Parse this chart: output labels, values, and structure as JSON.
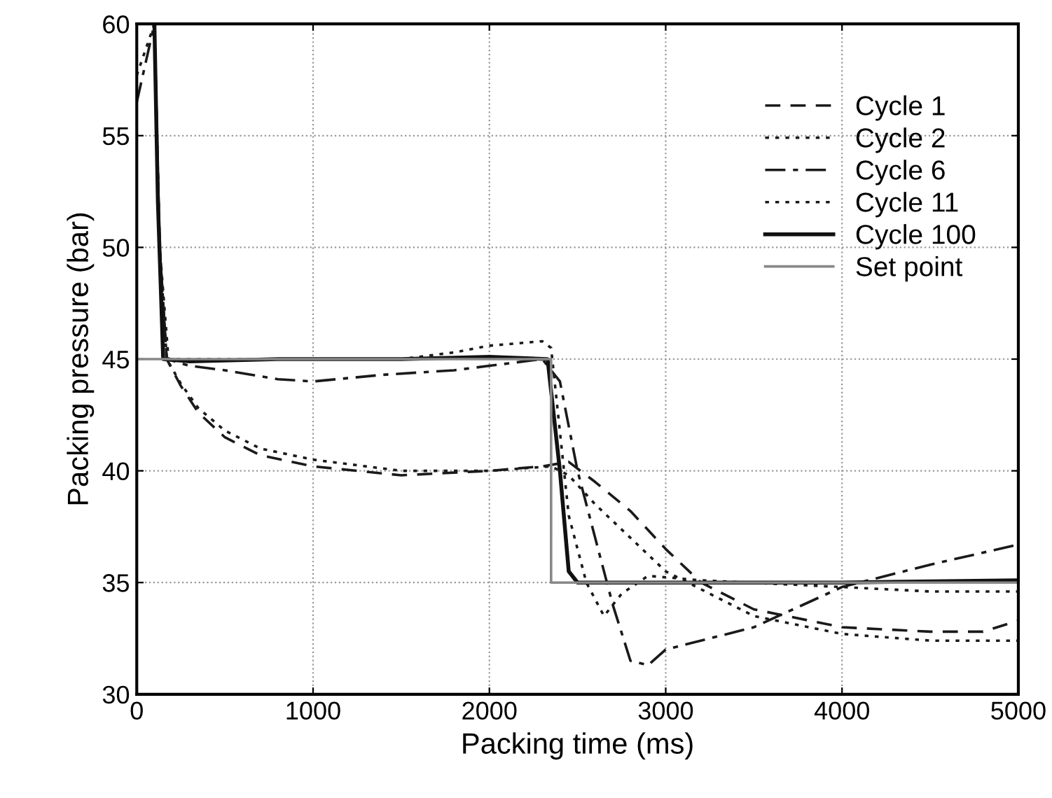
{
  "chart_data": {
    "type": "line",
    "xlabel": "Packing time (ms)",
    "ylabel": "Packing pressure (bar)",
    "xlim": [
      0,
      5000
    ],
    "ylim": [
      30,
      60
    ],
    "xticks": [
      0,
      1000,
      2000,
      3000,
      4000,
      5000
    ],
    "yticks": [
      30,
      35,
      40,
      45,
      50,
      55,
      60
    ],
    "grid": true,
    "legend": "top right",
    "marker": "none",
    "series": [
      {
        "name": "Cycle 1",
        "color": "#1a1a1a",
        "line_style": "dashed",
        "x": [
          100,
          130,
          170,
          250,
          350,
          500,
          700,
          1000,
          1500,
          2000,
          2300,
          2450,
          2600,
          2800,
          3000,
          3200,
          3500,
          4000,
          4500,
          4800,
          5000
        ],
        "values": [
          60,
          50,
          45,
          43.8,
          42.6,
          41.5,
          40.7,
          40.2,
          39.8,
          40.0,
          40.2,
          40.4,
          39.5,
          38.2,
          36.5,
          35.0,
          33.8,
          33.0,
          32.8,
          32.8,
          33.3
        ]
      },
      {
        "name": "Cycle 2",
        "color": "#1a1a1a",
        "line_style": "dotted",
        "x": [
          0,
          100,
          130,
          170,
          250,
          350,
          500,
          700,
          1000,
          1500,
          2000,
          2350,
          2450,
          2600,
          2800,
          3000,
          3500,
          4000,
          4500,
          5000
        ],
        "values": [
          57.7,
          60,
          50,
          45,
          43.9,
          42.8,
          41.8,
          41.0,
          40.5,
          40.0,
          40.0,
          40.2,
          39.8,
          38.5,
          37.0,
          35.5,
          33.5,
          32.7,
          32.4,
          32.4
        ]
      },
      {
        "name": "Cycle 6",
        "color": "#1a1a1a",
        "line_style": "dashdot",
        "x": [
          0,
          100,
          130,
          170,
          300,
          500,
          800,
          1000,
          1400,
          1800,
          2000,
          2300,
          2400,
          2500,
          2600,
          2700,
          2800,
          2900,
          3000,
          3500,
          4000,
          4500,
          5000
        ],
        "values": [
          56.5,
          60,
          50,
          45,
          44.7,
          44.5,
          44.1,
          44.0,
          44.3,
          44.5,
          44.7,
          45.0,
          44.0,
          40.0,
          37.0,
          34.0,
          31.5,
          31.3,
          32.0,
          33.0,
          34.8,
          35.8,
          36.7
        ]
      },
      {
        "name": "Cycle 11",
        "color": "#1a1a1a",
        "line_style": "dotted",
        "x": [
          100,
          130,
          180,
          500,
          1000,
          1500,
          1800,
          2000,
          2300,
          2350,
          2450,
          2550,
          2650,
          2750,
          2900,
          3200,
          4000,
          4500,
          5000
        ],
        "values": [
          60,
          50,
          45,
          45,
          45,
          45,
          45.3,
          45.6,
          45.8,
          45.5,
          38,
          35,
          33.5,
          34.5,
          35.3,
          35.1,
          34.8,
          34.6,
          34.6
        ]
      },
      {
        "name": "Cycle 100",
        "color": "#111111",
        "line_style": "solid",
        "x": [
          100,
          120,
          150,
          300,
          800,
          1500,
          2000,
          2330,
          2400,
          2450,
          2500,
          3000,
          4000,
          5000
        ],
        "values": [
          60,
          52,
          45,
          44.9,
          45.0,
          45.0,
          45.1,
          45.0,
          40,
          35.5,
          35,
          35,
          35,
          35.1
        ]
      },
      {
        "name": "Set point",
        "color": "#888888",
        "line_style": "solid",
        "x": [
          0,
          2350,
          2350,
          5000
        ],
        "values": [
          45,
          45,
          35,
          35
        ]
      }
    ]
  }
}
